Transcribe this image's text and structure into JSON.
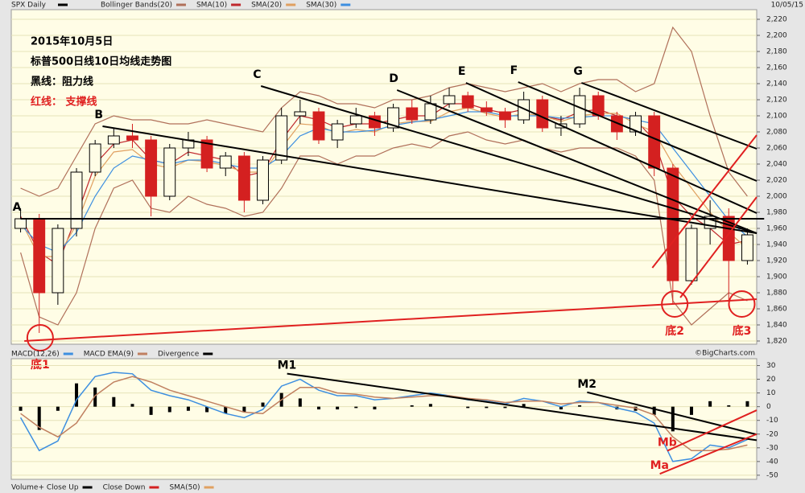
{
  "chart_data": [
    {
      "type": "candlestick",
      "title": "SPX Daily",
      "date": "10/05/15",
      "notes": [
        {
          "text": "2015年10月5日",
          "color": "#000000"
        },
        {
          "text": "标普500日线10日均线走势图",
          "color": "#000000"
        },
        {
          "text": "黑线：阻力线",
          "color": "#000000"
        },
        {
          "text": "红线： 支撑线",
          "color": "#e02020"
        }
      ],
      "open": [
        1960,
        1972,
        1880,
        1960,
        2030,
        2065,
        2075,
        2070,
        2000,
        2060,
        2070,
        2035,
        2050,
        1995,
        2045,
        2100,
        2105,
        2070,
        2090,
        2100,
        2085,
        2110,
        2095,
        2115,
        2125,
        2110,
        2105,
        2095,
        2120,
        2085,
        2090,
        2125,
        2100,
        2080,
        2100,
        2035,
        1895,
        1960,
        1975,
        1920
      ],
      "high": [
        1985,
        1978,
        1965,
        2035,
        2070,
        2085,
        2090,
        2075,
        2065,
        2080,
        2075,
        2055,
        2055,
        2050,
        2110,
        2120,
        2110,
        2095,
        2110,
        2105,
        2115,
        2120,
        2125,
        2135,
        2130,
        2118,
        2110,
        2130,
        2125,
        2100,
        2135,
        2130,
        2105,
        2105,
        2105,
        2040,
        1965,
        1995,
        1985,
        1960
      ],
      "low": [
        1955,
        1830,
        1865,
        1950,
        2025,
        2060,
        2060,
        1975,
        1995,
        2050,
        2030,
        2025,
        1980,
        1990,
        2040,
        2090,
        2065,
        2060,
        2085,
        2075,
        2080,
        2090,
        2090,
        2110,
        2105,
        2100,
        2085,
        2090,
        2080,
        2075,
        2085,
        2095,
        2070,
        2075,
        2025,
        1867,
        1890,
        1940,
        1871,
        1915
      ],
      "close": [
        1972,
        1880,
        1960,
        2030,
        2065,
        2075,
        2070,
        2000,
        2060,
        2070,
        2035,
        2050,
        1995,
        2045,
        2100,
        2105,
        2070,
        2090,
        2100,
        2085,
        2110,
        2095,
        2115,
        2125,
        2110,
        2105,
        2095,
        2120,
        2085,
        2090,
        2125,
        2100,
        2080,
        2100,
        2035,
        1895,
        1960,
        1975,
        1920,
        1952
      ],
      "up_color": "#000000",
      "down_color": "#d42020",
      "bands": {
        "name": "Bollinger Bands(20)",
        "color": "#b0705a",
        "upper": [
          2010,
          2000,
          2010,
          2050,
          2090,
          2100,
          2095,
          2095,
          2090,
          2090,
          2095,
          2090,
          2085,
          2080,
          2110,
          2130,
          2125,
          2115,
          2115,
          2110,
          2120,
          2120,
          2125,
          2135,
          2140,
          2135,
          2130,
          2135,
          2140,
          2130,
          2140,
          2145,
          2145,
          2130,
          2140,
          2210,
          2180,
          2100,
          2030,
          2000
        ],
        "lower": [
          1930,
          1850,
          1840,
          1880,
          1960,
          2010,
          2020,
          1985,
          1980,
          2000,
          1990,
          1985,
          1975,
          1980,
          2010,
          2050,
          2050,
          2040,
          2050,
          2050,
          2060,
          2065,
          2060,
          2075,
          2080,
          2070,
          2065,
          2070,
          2060,
          2055,
          2060,
          2060,
          2060,
          2050,
          2020,
          1870,
          1840,
          1860,
          1880,
          1870
        ]
      },
      "series": [
        {
          "name": "SMA(10)",
          "color": "#c0282d",
          "values": [
            1975,
            1930,
            1915,
            1975,
            2040,
            2065,
            2070,
            2045,
            2040,
            2055,
            2050,
            2045,
            2025,
            2030,
            2070,
            2100,
            2095,
            2085,
            2090,
            2090,
            2095,
            2100,
            2100,
            2115,
            2115,
            2108,
            2103,
            2108,
            2100,
            2095,
            2105,
            2108,
            2100,
            2095,
            2070,
            2000,
            1975,
            1960,
            1940,
            1945
          ]
        },
        {
          "name": "SMA(20)",
          "color": "#e0a060",
          "values": [
            1970,
            1925,
            1925,
            1965,
            2025,
            2055,
            2058,
            2040,
            2035,
            2045,
            2043,
            2038,
            2030,
            2030,
            2060,
            2090,
            2088,
            2078,
            2083,
            2080,
            2090,
            2093,
            2093,
            2105,
            2110,
            2103,
            2098,
            2103,
            2100,
            2093,
            2100,
            2103,
            2103,
            2090,
            2080,
            2040,
            2010,
            1980,
            1955,
            1935
          ]
        },
        {
          "name": "SMA(30)",
          "color": "#3d8fe0",
          "values": [
            1965,
            1940,
            1930,
            1955,
            2000,
            2035,
            2050,
            2045,
            2040,
            2045,
            2045,
            2040,
            2035,
            2035,
            2050,
            2075,
            2085,
            2080,
            2080,
            2082,
            2088,
            2092,
            2095,
            2100,
            2105,
            2105,
            2100,
            2100,
            2100,
            2097,
            2098,
            2100,
            2100,
            2095,
            2090,
            2060,
            2030,
            2000,
            1970,
            1950
          ]
        }
      ],
      "ylim": [
        1816,
        2232
      ],
      "yticks": [
        {
          "value": 1820,
          "label": "1,820"
        },
        {
          "value": 1840,
          "label": "1,840"
        },
        {
          "value": 1860,
          "label": "1,860"
        },
        {
          "value": 1880,
          "label": "1,880"
        },
        {
          "value": 1900,
          "label": "1,900"
        },
        {
          "value": 1920,
          "label": "1,920"
        },
        {
          "value": 1940,
          "label": "1,940"
        },
        {
          "value": 1960,
          "label": "1,960"
        },
        {
          "value": 1980,
          "label": "1,980"
        },
        {
          "value": 2000,
          "label": "2,000"
        },
        {
          "value": 2020,
          "label": "2,020"
        },
        {
          "value": 2040,
          "label": "2,040"
        },
        {
          "value": 2060,
          "label": "2,060"
        },
        {
          "value": 2080,
          "label": "2,080"
        },
        {
          "value": 2100,
          "label": "2,100"
        },
        {
          "value": 2120,
          "label": "2,120"
        },
        {
          "value": 2140,
          "label": "2,140"
        },
        {
          "value": 2160,
          "label": "2,160"
        },
        {
          "value": 2180,
          "label": "2,180"
        },
        {
          "value": 2200,
          "label": "2,200"
        },
        {
          "value": 2220,
          "label": "2,220"
        }
      ],
      "grid": true,
      "trendlines": [
        {
          "label": "A",
          "color": "#000000",
          "from": [
            0,
            1972
          ],
          "to": [
            39.9,
            1972
          ]
        },
        {
          "label": "B",
          "color": "#000000",
          "from": [
            4.4,
            2087
          ],
          "to": [
            39.5,
            1954
          ]
        },
        {
          "label": "C",
          "color": "#000000",
          "from": [
            12.9,
            2137
          ],
          "to": [
            39.5,
            1954
          ]
        },
        {
          "label": "D",
          "color": "#000000",
          "from": [
            20.2,
            2132
          ],
          "to": [
            39.5,
            1954
          ]
        },
        {
          "label": "E",
          "color": "#000000",
          "from": [
            23.9,
            2141
          ],
          "to": [
            39.5,
            1979
          ]
        },
        {
          "label": "F",
          "color": "#000000",
          "from": [
            26.7,
            2142
          ],
          "to": [
            39.5,
            2019
          ]
        },
        {
          "label": "G",
          "color": "#000000",
          "from": [
            30.1,
            2141
          ],
          "to": [
            39.5,
            2059
          ]
        },
        {
          "color": "#e02020",
          "from": [
            0.2,
            1820
          ],
          "to": [
            39.5,
            1872
          ]
        },
        {
          "color": "#e02020",
          "from": [
            33.9,
            1911
          ],
          "to": [
            39.5,
            2076
          ]
        },
        {
          "color": "#e02020",
          "from": [
            35.4,
            1874
          ],
          "to": [
            39.5,
            1999
          ]
        }
      ],
      "circles": [
        {
          "label": "底1",
          "at": [
            1.05,
            1824
          ]
        },
        {
          "label": "底2",
          "at": [
            35.1,
            1866
          ]
        },
        {
          "label": "底3",
          "at": [
            38.7,
            1866
          ]
        }
      ]
    },
    {
      "type": "macd",
      "credit": "©BigCharts.com",
      "series": [
        {
          "name": "MACD(12,26)",
          "color": "#3d8fe0",
          "values": [
            -8,
            -32,
            -25,
            5,
            22,
            25,
            24,
            12,
            8,
            5,
            0,
            -5,
            -8,
            -2,
            15,
            20,
            12,
            8,
            8,
            5,
            6,
            8,
            10,
            8,
            5,
            4,
            2,
            6,
            4,
            0,
            4,
            3,
            -1,
            -4,
            -12,
            -40,
            -38,
            -28,
            -30,
            -24
          ]
        },
        {
          "name": "MACD EMA(9)",
          "color": "#c08060",
          "values": [
            -5,
            -15,
            -22,
            -12,
            8,
            18,
            22,
            18,
            12,
            8,
            4,
            0,
            -4,
            -5,
            5,
            14,
            14,
            10,
            9,
            7,
            6,
            7,
            8,
            8,
            6,
            5,
            3,
            4,
            4,
            2,
            3,
            3,
            1,
            -1,
            -6,
            -22,
            -32,
            -32,
            -31,
            -28
          ]
        }
      ],
      "histogram": {
        "name": "Divergence",
        "color": "#000000",
        "values": [
          -3,
          -17,
          -3,
          17,
          14,
          7,
          2,
          -6,
          -4,
          -3,
          -4,
          -5,
          -4,
          3,
          10,
          6,
          -2,
          -2,
          -1,
          -2,
          0,
          1,
          2,
          0,
          -1,
          -1,
          -1,
          2,
          0,
          -2,
          1,
          0,
          -2,
          -3,
          -6,
          -18,
          -6,
          4,
          1,
          4
        ]
      },
      "ylim": [
        -53,
        35
      ],
      "yticks": [
        30,
        20,
        10,
        0,
        -10,
        -20,
        -30,
        -40,
        -50
      ],
      "grid": true,
      "trendlines": [
        {
          "label": "M1",
          "color": "#000000",
          "from": [
            14.3,
            24.1
          ],
          "to": [
            39.5,
            -24.5
          ]
        },
        {
          "label": "M2",
          "color": "#000000",
          "from": [
            30.4,
            10.5
          ],
          "to": [
            39.5,
            -20.3
          ]
        },
        {
          "label": "Ma",
          "color": "#e02020",
          "from": [
            34.3,
            -49
          ],
          "to": [
            39.5,
            -20
          ]
        },
        {
          "label": "Mb",
          "color": "#e02020",
          "from": [
            34.7,
            -32.2
          ],
          "to": [
            39.5,
            -2.6
          ]
        }
      ]
    },
    {
      "type": "volume",
      "series": [
        {
          "name": "Volume+ Close Up",
          "color": "#000000"
        },
        {
          "name": "Close Down",
          "color": "#d42020"
        },
        {
          "name": "SMA(50)",
          "color": "#e0a060"
        }
      ]
    }
  ]
}
